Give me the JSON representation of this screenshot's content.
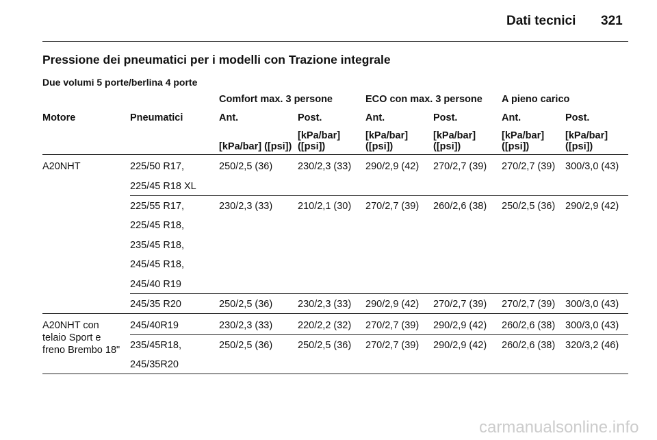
{
  "header": {
    "title": "Dati tecnici",
    "page": "321"
  },
  "section_title": "Pressione dei pneumatici per i modelli con Trazione integrale",
  "subtitle": "Due volumi 5 porte/berlina 4 porte",
  "table": {
    "group_headers": [
      "Comfort max. 3 persone",
      "ECO con max. 3 persone",
      "A pieno carico"
    ],
    "columns": [
      "Motore",
      "Pneumatici",
      "Ant.",
      "Post.",
      "Ant.",
      "Post.",
      "Ant.",
      "Post."
    ],
    "units": [
      [
        "[kPa/bar] ([psi])"
      ],
      [
        "[kPa/bar]",
        "([psi])"
      ],
      [
        "[kPa/bar]",
        "([psi])"
      ],
      [
        "[kPa/bar]",
        "([psi])"
      ],
      [
        "[kPa/bar]",
        "([psi])"
      ],
      [
        "[kPa/bar]",
        "([psi])"
      ]
    ],
    "groups": [
      {
        "engine": [
          "A20NHT"
        ],
        "rows": [
          {
            "tyres": [
              "225/50 R17,",
              "225/45 R18 XL"
            ],
            "values": [
              "250/2,5 (36)",
              "230/2,3 (33)",
              "290/2,9 (42)",
              "270/2,7 (39)",
              "270/2,7 (39)",
              "300/3,0 (43)"
            ]
          },
          {
            "tyres": [
              "225/55 R17,",
              "225/45 R18,",
              "235/45 R18,",
              "245/45 R18,",
              "245/40 R19"
            ],
            "values": [
              "230/2,3 (33)",
              "210/2,1 (30)",
              "270/2,7 (39)",
              "260/2,6 (38)",
              "250/2,5 (36)",
              "290/2,9 (42)"
            ]
          },
          {
            "tyres": [
              "245/35 R20"
            ],
            "values": [
              "250/2,5 (36)",
              "230/2,3 (33)",
              "290/2,9 (42)",
              "270/2,7 (39)",
              "270/2,7 (39)",
              "300/3,0 (43)"
            ]
          }
        ]
      },
      {
        "engine": [
          "A20NHT con",
          "telaio Sport e",
          "freno Brembo 18\""
        ],
        "rows": [
          {
            "tyres": [
              "245/40R19"
            ],
            "values": [
              "230/2,3 (33)",
              "220/2,2 (32)",
              "270/2,7 (39)",
              "290/2,9 (42)",
              "260/2,6 (38)",
              "300/3,0 (43)"
            ]
          },
          {
            "tyres": [
              "235/45R18,",
              "245/35R20"
            ],
            "values": [
              "250/2,5 (36)",
              "250/2,5 (36)",
              "270/2,7 (39)",
              "290/2,9 (42)",
              "260/2,6 (38)",
              "320/3,2 (46)"
            ]
          }
        ]
      }
    ]
  },
  "watermark": "carmanualsonline.info"
}
